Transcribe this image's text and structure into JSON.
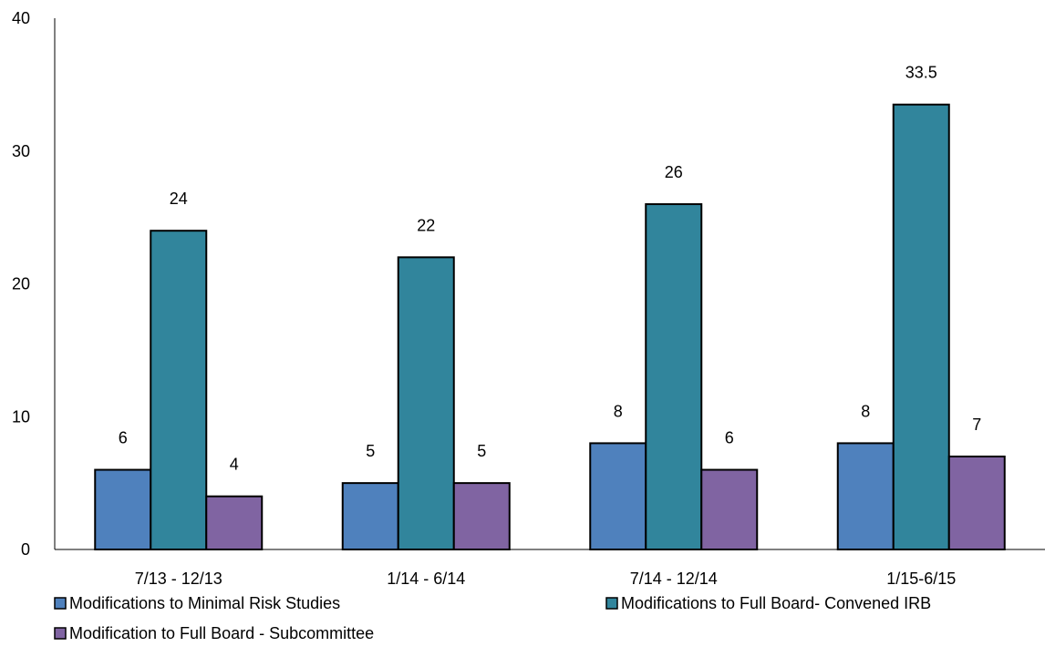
{
  "chart_data": {
    "type": "bar",
    "categories": [
      "7/13 - 12/13",
      "1/14 - 6/14",
      "7/14 - 12/14",
      "1/15-6/15"
    ],
    "series": [
      {
        "name": "Modifications to Minimal Risk Studies",
        "values": [
          6,
          5,
          8,
          8
        ],
        "color": "#4F81BD"
      },
      {
        "name": "Modifications to Full Board- Convened IRB",
        "values": [
          24,
          22,
          26,
          33.5
        ],
        "color": "#31859C"
      },
      {
        "name": "Modification to Full Board - Subcommittee",
        "values": [
          4,
          5,
          6,
          7
        ],
        "color": "#8064A2"
      }
    ],
    "ylim": [
      0,
      40
    ],
    "yticks": [
      0,
      10,
      20,
      30,
      40
    ],
    "grid": false,
    "legend_position": "bottom"
  }
}
